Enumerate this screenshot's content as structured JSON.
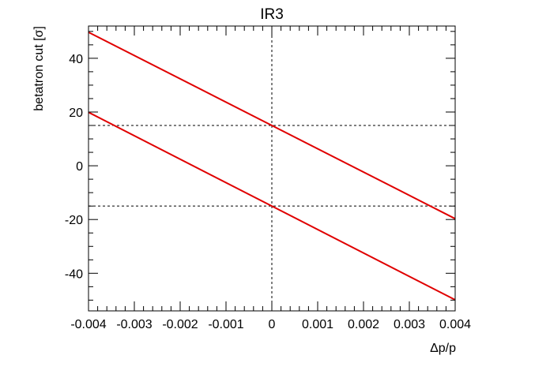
{
  "chart_data": {
    "type": "line",
    "title": "IR3",
    "xlabel": "Δp/p",
    "ylabel": "betatron cut [σ]",
    "xlim": [
      -0.004,
      0.004
    ],
    "ylim": [
      -54,
      52
    ],
    "x_ticks": [
      -0.004,
      -0.003,
      -0.002,
      -0.001,
      0,
      0.001,
      0.002,
      0.003,
      0.004
    ],
    "x_tick_labels": [
      "-0.004",
      "-0.003",
      "-0.002",
      "-0.001",
      "0",
      "0.001",
      "0.002",
      "0.003",
      "0.004"
    ],
    "y_ticks": [
      -40,
      -20,
      0,
      20,
      40
    ],
    "y_tick_labels": [
      "-40",
      "-20",
      "0",
      "20",
      "40"
    ],
    "series": [
      {
        "x": [
          -0.004,
          0.004
        ],
        "y": [
          49.7,
          -19.7
        ],
        "color": "#e00000"
      },
      {
        "x": [
          -0.004,
          0.004
        ],
        "y": [
          19.9,
          -49.9
        ],
        "color": "#e00000"
      }
    ],
    "reference_lines": {
      "horizontal": [
        15,
        -15
      ],
      "vertical": [
        0
      ]
    },
    "grid": false,
    "legend": "none"
  }
}
